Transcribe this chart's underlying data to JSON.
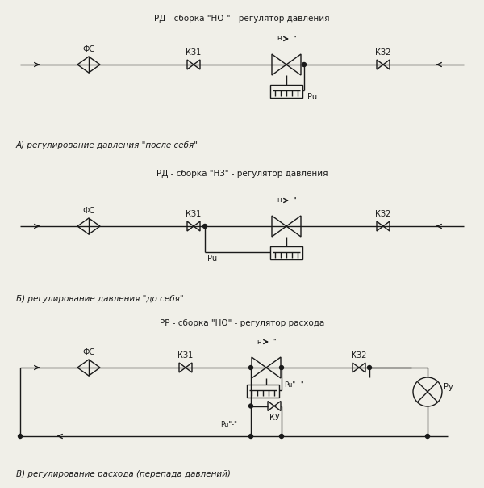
{
  "bg_color": "#f0efe8",
  "line_color": "#1a1a1a",
  "title1": "РД - сборка \"НО \" - регулятор давления",
  "title2": "РД - сборка \"НЗ\" - регулятор давления",
  "title3": "РР - сборка \"НО\" - регулятор расхода",
  "label_A": "А) регулирование давления \"после себя\"",
  "label_B": "Б) регулирование давления \"до себя\"",
  "label_C": "В) регулирование расхода (перепада давлений)",
  "lw": 1.0
}
